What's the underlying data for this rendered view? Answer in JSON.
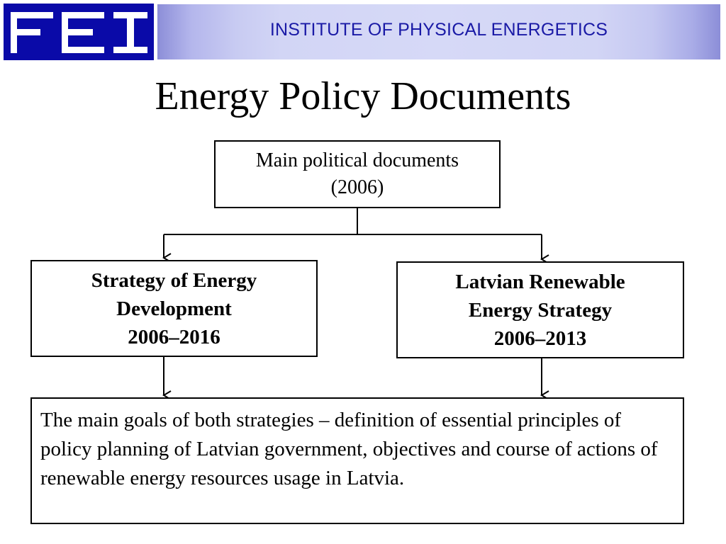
{
  "header": {
    "logo_text": "FEI",
    "institute": "INSTITUTE OF PHYSICAL ENERGETICS"
  },
  "title": "Energy Policy Documents",
  "diagram": {
    "top_box": {
      "line1": "Main political documents",
      "line2": "(2006)"
    },
    "left_box": {
      "line1": "Strategy of Energy",
      "line2": "Development",
      "line3": "2006–2016"
    },
    "right_box": {
      "line1": "Latvian Renewable",
      "line2": "Energy Strategy",
      "line3": "2006–2013"
    },
    "bottom_box": {
      "text": "The main goals of both strategies – definition of essential principles of policy planning of Latvian government, objectives and course of actions of renewable energy resources usage in Latvia."
    }
  },
  "colors": {
    "header_text": "#1a1aa6",
    "logo_blue": "#0a0aa8"
  }
}
